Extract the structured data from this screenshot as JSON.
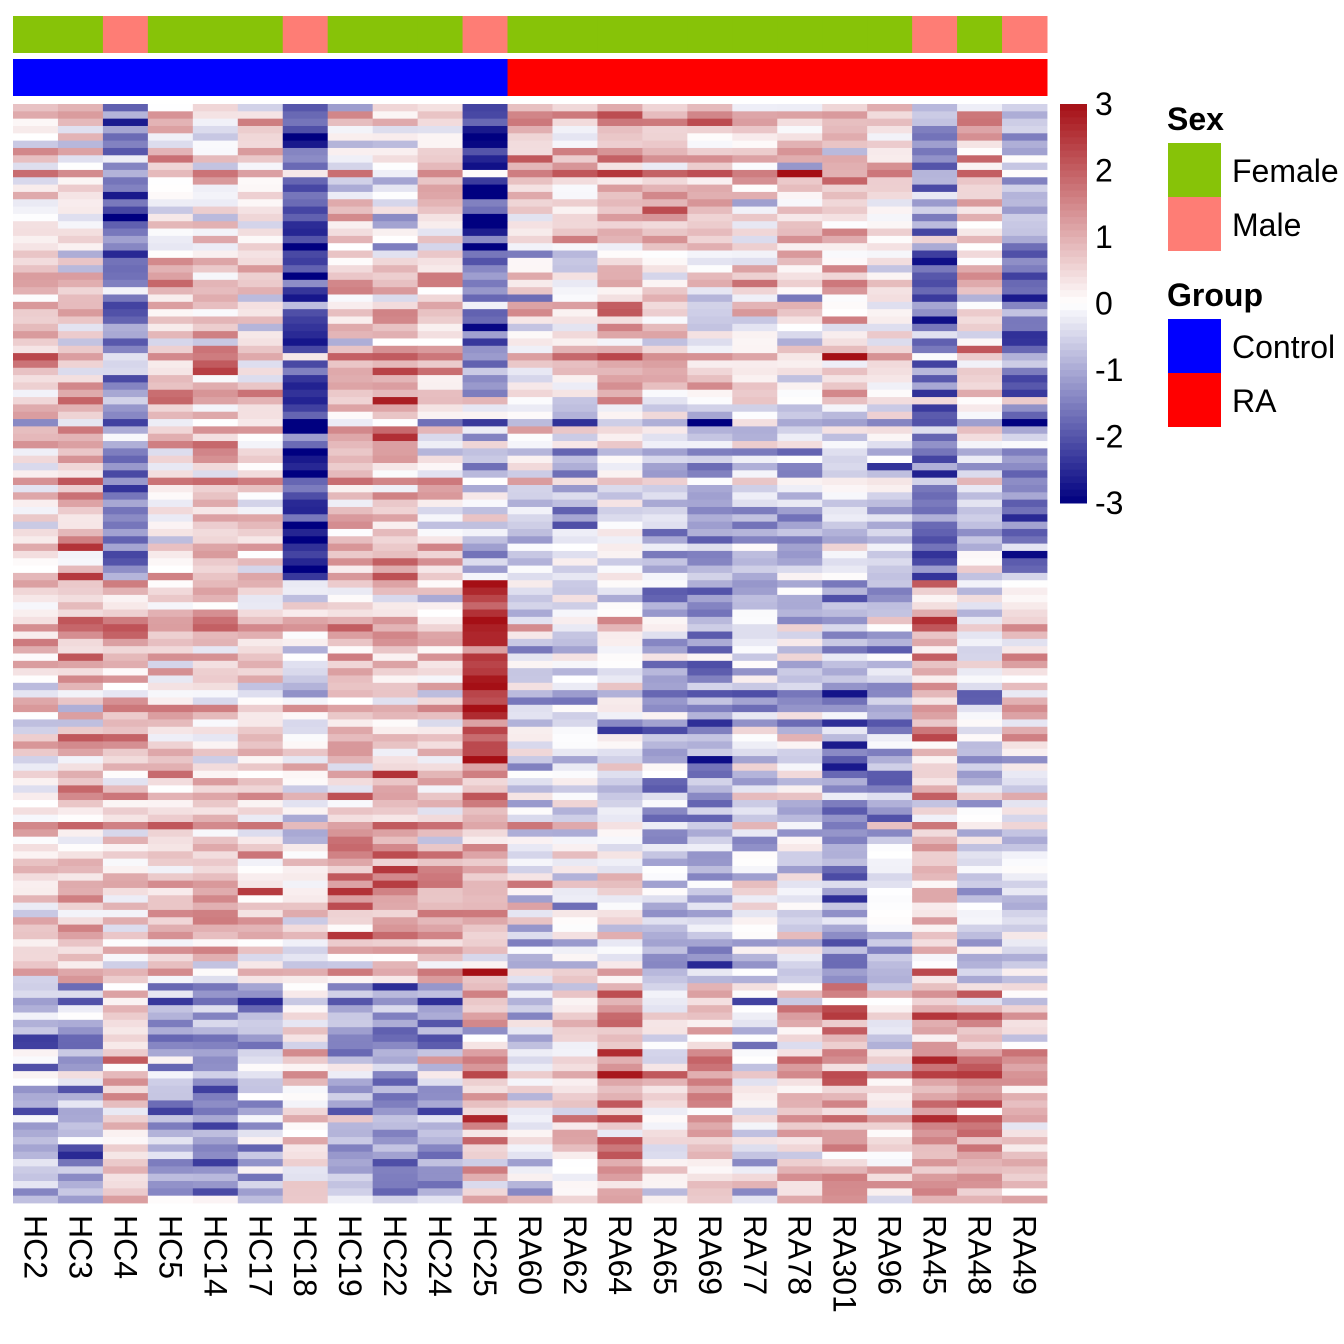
{
  "chart_data": {
    "type": "heatmap",
    "title": "",
    "columns": [
      "HC2",
      "HC3",
      "HC4",
      "HC5",
      "HC14",
      "HC17",
      "HC18",
      "HC19",
      "HC22",
      "HC24",
      "HC25",
      "RA60",
      "RA62",
      "RA64",
      "RA65",
      "RA69",
      "RA77",
      "RA78",
      "RA301",
      "RA96",
      "RA45",
      "RA48",
      "RA49"
    ],
    "n_rows": 150,
    "annotations": {
      "Sex": [
        "Female",
        "Female",
        "Male",
        "Female",
        "Female",
        "Female",
        "Male",
        "Female",
        "Female",
        "Female",
        "Male",
        "Female",
        "Female",
        "Female",
        "Female",
        "Female",
        "Female",
        "Female",
        "Female",
        "Female",
        "Male",
        "Female",
        "Male"
      ],
      "Group": [
        "Control",
        "Control",
        "Control",
        "Control",
        "Control",
        "Control",
        "Control",
        "Control",
        "Control",
        "Control",
        "Control",
        "RA",
        "RA",
        "RA",
        "RA",
        "RA",
        "RA",
        "RA",
        "RA",
        "RA",
        "RA",
        "RA",
        "RA"
      ]
    },
    "color_scale": {
      "min": -3,
      "mid": 0,
      "max": 3,
      "low_color": "#000080",
      "mid_color": "#ffffff",
      "high_color": "#a50f15",
      "ticks": [
        "3",
        "2",
        "1",
        "0",
        "-1",
        "-2",
        "-3"
      ],
      "tick_values": [
        3,
        2,
        1,
        0,
        -1,
        -2,
        -3
      ]
    },
    "legends": [
      {
        "title": "Sex",
        "items": [
          {
            "label": "Female",
            "color": "#87c308"
          },
          {
            "label": "Male",
            "color": "#fe7d75"
          }
        ]
      },
      {
        "title": "Group",
        "items": [
          {
            "label": "Control",
            "color": "#0000ff"
          },
          {
            "label": "RA",
            "color": "#ff0000"
          }
        ]
      }
    ],
    "row_blocks": [
      {
        "rows": 20,
        "means": [
          0.2,
          0.1,
          -1.6,
          0.2,
          0.3,
          0.4,
          -2.3,
          0.2,
          -0.1,
          0.4,
          -2.4,
          0.6,
          0.6,
          1.1,
          0.7,
          0.9,
          0.4,
          0.5,
          0.8,
          0.4,
          -1.2,
          0.9,
          -0.9
        ]
      },
      {
        "rows": 20,
        "means": [
          0.6,
          0.5,
          -1.8,
          0.6,
          0.7,
          0.5,
          -2.2,
          0.6,
          0.7,
          0.6,
          -1.7,
          0.3,
          0.2,
          0.8,
          0.3,
          0.1,
          0.3,
          0.2,
          0.5,
          0.1,
          -1.9,
          0.3,
          -1.7
        ]
      },
      {
        "rows": 25,
        "means": [
          0.4,
          0.9,
          -1.2,
          0.5,
          0.9,
          0.6,
          -2.5,
          0.9,
          1.1,
          0.5,
          -0.4,
          -0.3,
          -0.6,
          0.1,
          -0.6,
          -0.9,
          -0.4,
          -0.7,
          -0.3,
          -0.5,
          -1.6,
          -0.3,
          -1.3
        ]
      },
      {
        "rows": 25,
        "means": [
          0.2,
          0.6,
          0.9,
          0.4,
          0.5,
          0.5,
          -0.3,
          0.6,
          0.5,
          0.3,
          2.2,
          -0.5,
          -0.6,
          -0.4,
          -1.1,
          -1.3,
          -0.6,
          -0.9,
          -1.4,
          -0.8,
          0.9,
          -0.5,
          0.3
        ]
      },
      {
        "rows": 30,
        "means": [
          0.4,
          0.7,
          0.3,
          0.6,
          0.7,
          0.4,
          -0.2,
          0.8,
          0.9,
          0.6,
          0.9,
          -0.3,
          -0.3,
          -0.2,
          -0.9,
          -1.2,
          -0.3,
          -0.5,
          -1.5,
          -0.7,
          0.6,
          -0.6,
          -0.4
        ]
      },
      {
        "rows": 30,
        "means": [
          -0.8,
          -1.1,
          0.6,
          -1.0,
          -1.2,
          -0.9,
          0.3,
          -1.0,
          -1.1,
          -1.0,
          0.8,
          -0.4,
          0.2,
          1.2,
          0.1,
          0.7,
          -0.2,
          0.7,
          1.2,
          0.1,
          1.3,
          1.2,
          0.7
        ]
      }
    ],
    "noise_amplitude": 0.9,
    "seed": 20240517
  }
}
